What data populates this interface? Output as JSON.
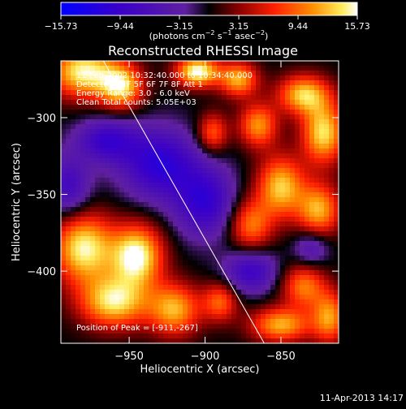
{
  "chart_data": {
    "type": "heatmap",
    "title": "Reconstructed RHESSI Image",
    "xlabel": "Heliocentric X (arcsec)",
    "ylabel": "Heliocentric Y (arcsec)",
    "xlim": [
      -995,
      -812
    ],
    "ylim": [
      -447,
      -263
    ],
    "x_ticks": [
      -950,
      -900,
      -850
    ],
    "x_tick_labels": [
      "−950",
      "−900",
      "−850"
    ],
    "y_ticks": [
      -300,
      -350,
      -400
    ],
    "y_tick_labels": [
      "−300",
      "−350",
      "−400"
    ],
    "colorbar": {
      "ticks": [
        -15.73,
        -9.44,
        -3.15,
        3.15,
        9.44,
        15.73
      ],
      "tick_labels": [
        "−15.73",
        "−9.44",
        "−3.15",
        "3.15",
        "9.44",
        "15.73"
      ],
      "range": [
        -15.73,
        15.73
      ],
      "unit_main": "(photons cm",
      "unit_exp1": "−2",
      "unit_mid": " s",
      "unit_exp2": "−1",
      "unit_mid2": " asec",
      "unit_exp3": "−2",
      "unit_end": ")"
    },
    "info_lines": [
      "11-Feb-2002 10:32:40.000 to 10:34:40.000",
      "Detectors: 4F 5F 6F 7F 8F  Att 1",
      "Energy Range: 3.0 - 6.0 keV",
      "Clean     Total counts: 5.05E+03"
    ],
    "peak_label": "Position of Peak = [-911,-267]",
    "peak": [
      -911,
      -267
    ],
    "limb_line": [
      [
        -967,
        -263
      ],
      [
        -861,
        -447
      ]
    ],
    "blobs": [
      {
        "x": -905,
        "y": -270,
        "sx": 10,
        "sy": 7,
        "a": 16
      },
      {
        "x": -878,
        "y": -275,
        "sx": 9,
        "sy": 8,
        "a": 12
      },
      {
        "x": -835,
        "y": -285,
        "sx": 12,
        "sy": 9,
        "a": 13
      },
      {
        "x": -822,
        "y": -310,
        "sx": 10,
        "sy": 14,
        "a": 14
      },
      {
        "x": -865,
        "y": -305,
        "sx": 9,
        "sy": 10,
        "a": 11
      },
      {
        "x": -895,
        "y": -310,
        "sx": 7,
        "sy": 9,
        "a": 9
      },
      {
        "x": -850,
        "y": -345,
        "sx": 11,
        "sy": 14,
        "a": 13
      },
      {
        "x": -825,
        "y": -360,
        "sx": 10,
        "sy": 12,
        "a": 12
      },
      {
        "x": -870,
        "y": -370,
        "sx": 10,
        "sy": 12,
        "a": 10
      },
      {
        "x": -980,
        "y": -270,
        "sx": 16,
        "sy": 12,
        "a": 15
      },
      {
        "x": -955,
        "y": -280,
        "sx": 10,
        "sy": 10,
        "a": 13
      },
      {
        "x": -980,
        "y": -385,
        "sx": 14,
        "sy": 16,
        "a": 15
      },
      {
        "x": -945,
        "y": -390,
        "sx": 12,
        "sy": 14,
        "a": 16
      },
      {
        "x": -960,
        "y": -420,
        "sx": 16,
        "sy": 12,
        "a": 14
      },
      {
        "x": -920,
        "y": -425,
        "sx": 12,
        "sy": 12,
        "a": 12
      },
      {
        "x": -890,
        "y": -420,
        "sx": 8,
        "sy": 9,
        "a": 9
      },
      {
        "x": -835,
        "y": -410,
        "sx": 10,
        "sy": 10,
        "a": 10
      },
      {
        "x": -850,
        "y": -435,
        "sx": 14,
        "sy": 8,
        "a": 12
      },
      {
        "x": -818,
        "y": -430,
        "sx": 8,
        "sy": 12,
        "a": 11
      },
      {
        "x": -930,
        "y": -330,
        "sx": 18,
        "sy": 16,
        "a": -11
      },
      {
        "x": -965,
        "y": -315,
        "sx": 14,
        "sy": 10,
        "a": -9
      },
      {
        "x": -900,
        "y": -355,
        "sx": 14,
        "sy": 16,
        "a": -10
      },
      {
        "x": -870,
        "y": -400,
        "sx": 12,
        "sy": 10,
        "a": -9
      },
      {
        "x": -830,
        "y": -385,
        "sx": 8,
        "sy": 8,
        "a": -6
      },
      {
        "x": -990,
        "y": -345,
        "sx": 10,
        "sy": 14,
        "a": -8
      }
    ]
  },
  "footer": {
    "date": "11-Apr-2013 14:17"
  }
}
